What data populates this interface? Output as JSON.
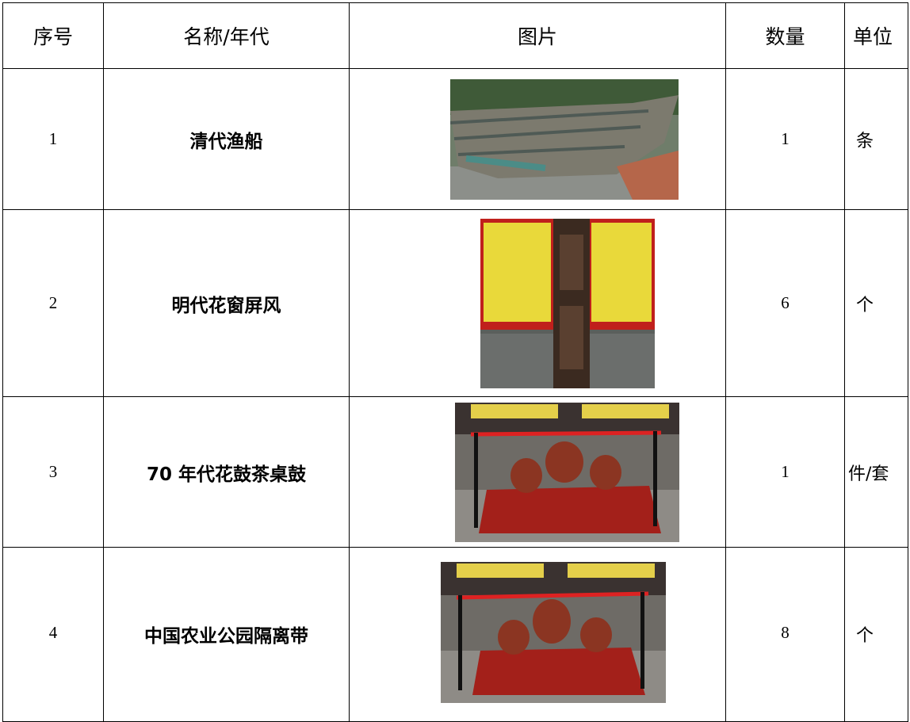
{
  "table": {
    "header": [
      "序号",
      "名称/年代",
      "图片",
      "数量",
      "单位"
    ],
    "rows": [
      [
        "1",
        "清代渔船",
        "1",
        "条"
      ],
      [
        "2",
        "明代花窗屏风",
        "6",
        "个"
      ],
      [
        "3",
        "70 年代花鼓茶桌鼓",
        "1",
        "件/套"
      ],
      [
        "4",
        "中国农业公园隔离带",
        "8",
        "个"
      ]
    ]
  }
}
